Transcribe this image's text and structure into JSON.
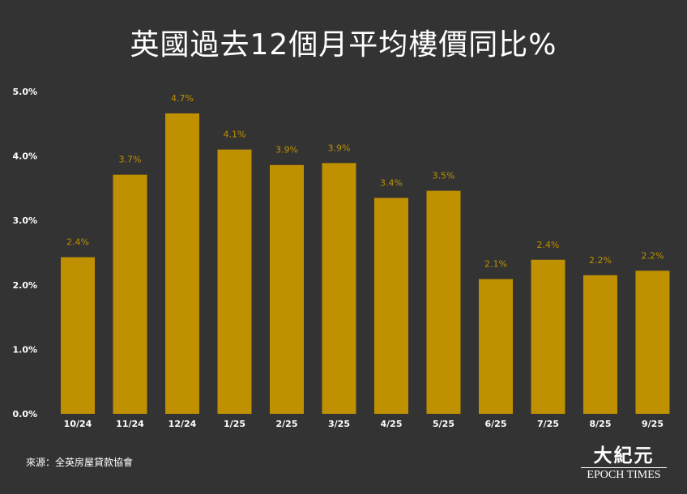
{
  "title": "英國過去12個月平均樓價同比%",
  "source": "來源：全英房屋貸款協會",
  "logo": {
    "cn": "大紀元",
    "en": "EPOCH TIMES"
  },
  "colors": {
    "background": "#333333",
    "bar": "#bf9000",
    "label": "#bf9000",
    "text": "#ffffff"
  },
  "chart_data": {
    "type": "bar",
    "categories": [
      "10/24",
      "11/24",
      "12/24",
      "1/25",
      "2/25",
      "3/25",
      "4/25",
      "5/25",
      "6/25",
      "7/25",
      "8/25",
      "9/25"
    ],
    "values": [
      2.43,
      3.71,
      4.66,
      4.1,
      3.86,
      3.89,
      3.35,
      3.46,
      2.09,
      2.39,
      2.15,
      2.22
    ],
    "data_labels": [
      "2.4%",
      "3.7%",
      "4.7%",
      "4.1%",
      "3.9%",
      "3.9%",
      "3.4%",
      "3.5%",
      "2.1%",
      "2.4%",
      "2.2%",
      "2.2%"
    ],
    "yticks": [
      0,
      1,
      2,
      3,
      4,
      5
    ],
    "ytick_labels": [
      "0.0%",
      "1.0%",
      "2.0%",
      "3.0%",
      "4.0%",
      "5.0%"
    ],
    "ylim": [
      0,
      5
    ],
    "grid": false,
    "legend": "none"
  }
}
